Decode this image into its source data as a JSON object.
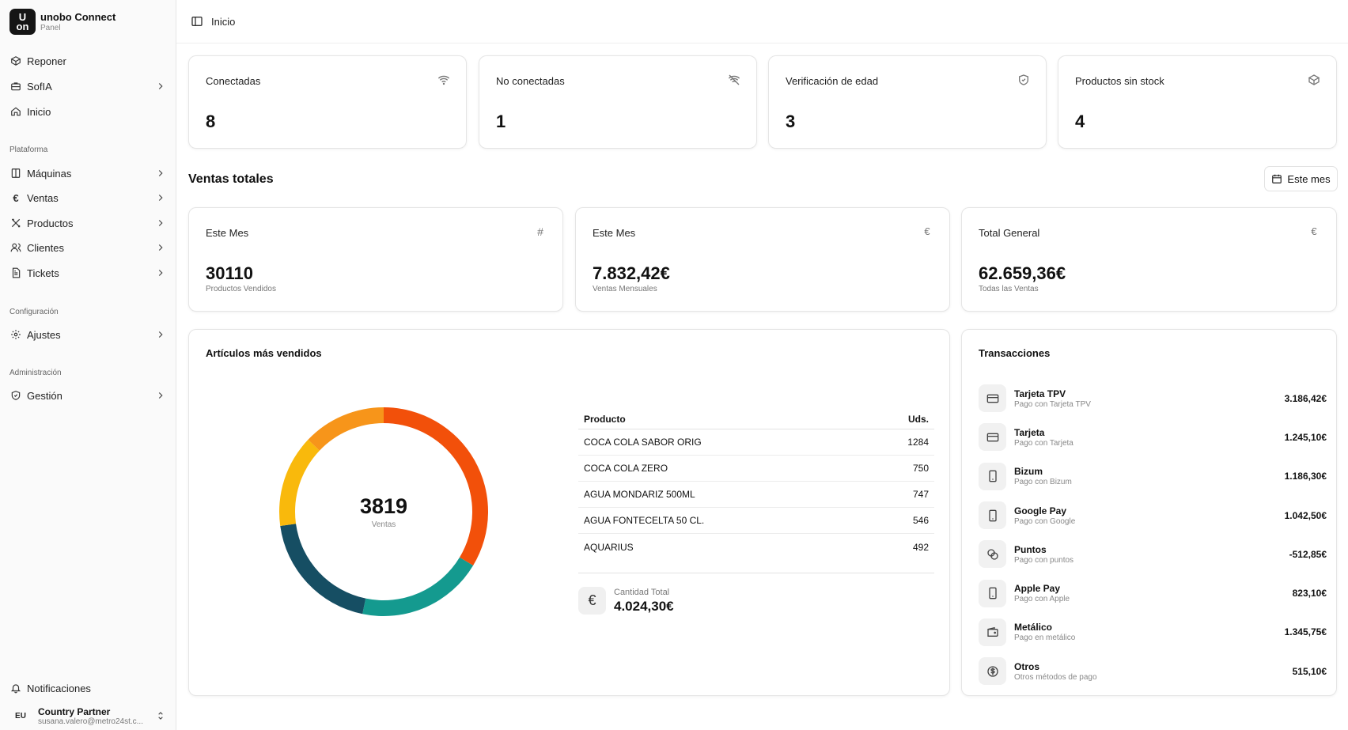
{
  "brand": {
    "logo_top": "U",
    "logo_bottom": "on",
    "name": "unobo Connect",
    "subtitle": "Panel"
  },
  "sidebar": {
    "top_items": [
      {
        "label": "Reponer",
        "icon": "box-icon",
        "chevron": false
      },
      {
        "label": "SofIA",
        "icon": "briefcase-icon",
        "chevron": true
      },
      {
        "label": "Inicio",
        "icon": "home-icon",
        "chevron": false
      }
    ],
    "groups": [
      {
        "label": "Plataforma",
        "items": [
          {
            "label": "Máquinas",
            "icon": "machine-icon",
            "chevron": true
          },
          {
            "label": "Ventas",
            "icon": "euro-icon",
            "chevron": true
          },
          {
            "label": "Productos",
            "icon": "tools-icon",
            "chevron": true
          },
          {
            "label": "Clientes",
            "icon": "users-icon",
            "chevron": true
          },
          {
            "label": "Tickets",
            "icon": "ticket-icon",
            "chevron": true
          }
        ]
      },
      {
        "label": "Configuración",
        "items": [
          {
            "label": "Ajustes",
            "icon": "gear-icon",
            "chevron": true
          }
        ]
      },
      {
        "label": "Administración",
        "items": [
          {
            "label": "Gestión",
            "icon": "shield-icon",
            "chevron": true
          }
        ]
      }
    ],
    "notifications_label": "Notificaciones",
    "user": {
      "initials": "EU",
      "name": "Country Partner",
      "email": "susana.valero@metro24st.c..."
    }
  },
  "header": {
    "breadcrumb": "Inicio"
  },
  "stats": [
    {
      "title": "Conectadas",
      "value": "8",
      "icon": "wifi-icon"
    },
    {
      "title": "No conectadas",
      "value": "1",
      "icon": "wifi-off-icon"
    },
    {
      "title": "Verificación de edad",
      "value": "3",
      "icon": "shield-check-icon"
    },
    {
      "title": "Productos sin stock",
      "value": "4",
      "icon": "package-icon"
    }
  ],
  "sales": {
    "title": "Ventas totales",
    "period_button": "Este mes",
    "cards": [
      {
        "title": "Este Mes",
        "value": "30110",
        "caption": "Productos Vendidos",
        "icon": "hash-icon"
      },
      {
        "title": "Este Mes",
        "value": "7.832,42€",
        "caption": "Ventas Mensuales",
        "icon": "euro-icon"
      },
      {
        "title": "Total General",
        "value": "62.659,36€",
        "caption": "Todas las Ventas",
        "icon": "euro-icon"
      }
    ]
  },
  "top_products": {
    "title": "Artículos más vendidos",
    "donut_value": "3819",
    "donut_label": "Ventas",
    "columns": {
      "product": "Producto",
      "qty": "Uds."
    },
    "rows": [
      {
        "name": "COCA COLA SABOR ORIG",
        "qty": "1284"
      },
      {
        "name": "COCA COLA ZERO",
        "qty": "750"
      },
      {
        "name": "AGUA MONDARIZ 500ML",
        "qty": "747"
      },
      {
        "name": "AGUA FONTECELTA 50 CL.",
        "qty": "546"
      },
      {
        "name": "AQUARIUS",
        "qty": "492"
      }
    ],
    "total_label": "Cantidad Total",
    "total_value": "4.024,30€",
    "total_icon": "€"
  },
  "chart_data": {
    "type": "pie",
    "categories": [
      "COCA COLA SABOR ORIG",
      "COCA COLA ZERO",
      "AGUA MONDARIZ 500ML",
      "AGUA FONTECELTA 50 CL.",
      "AQUARIUS"
    ],
    "values": [
      1284,
      750,
      747,
      546,
      492
    ],
    "colors": [
      "#f2500a",
      "#149a8f",
      "#164e63",
      "#f9b90c",
      "#f7951a"
    ],
    "center_value": "3819",
    "center_label": "Ventas"
  },
  "transactions": {
    "title": "Transacciones",
    "items": [
      {
        "name": "Tarjeta TPV",
        "desc": "Pago con Tarjeta TPV",
        "amount": "3.186,42€",
        "icon": "card-icon"
      },
      {
        "name": "Tarjeta",
        "desc": "Pago con Tarjeta",
        "amount": "1.245,10€",
        "icon": "card-icon"
      },
      {
        "name": "Bizum",
        "desc": "Pago con Bizum",
        "amount": "1.186,30€",
        "icon": "phone-icon"
      },
      {
        "name": "Google Pay",
        "desc": "Pago con Google",
        "amount": "1.042,50€",
        "icon": "phone-icon"
      },
      {
        "name": "Puntos",
        "desc": "Pago con puntos",
        "amount": "-512,85€",
        "icon": "coins-icon"
      },
      {
        "name": "Apple Pay",
        "desc": "Pago con Apple",
        "amount": "823,10€",
        "icon": "phone-icon"
      },
      {
        "name": "Metálico",
        "desc": "Pago en metálico",
        "amount": "1.345,75€",
        "icon": "wallet-icon"
      },
      {
        "name": "Otros",
        "desc": "Otros métodos de pago",
        "amount": "515,10€",
        "icon": "dollar-circle-icon"
      }
    ]
  }
}
